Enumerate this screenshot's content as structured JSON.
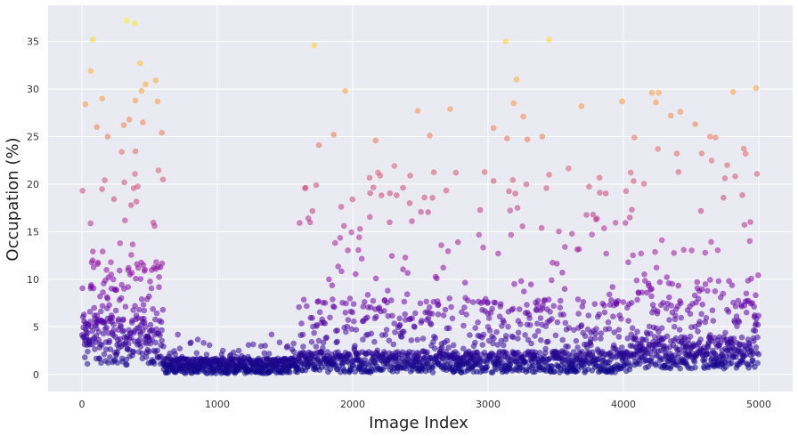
{
  "chart_data": {
    "type": "scatter",
    "title": "",
    "xlabel": "Image Index",
    "ylabel": "Occupation (%)",
    "xlim": [
      -250,
      5250
    ],
    "ylim": [
      -1.8,
      38.8
    ],
    "xticks": [
      0,
      1000,
      2000,
      3000,
      4000,
      5000
    ],
    "yticks": [
      0,
      5,
      10,
      15,
      20,
      25,
      30,
      35
    ],
    "grid": true,
    "colormap": "plasma",
    "color_range": [
      0,
      38
    ],
    "marker_alpha": 0.55,
    "background": "#eaeaf2",
    "highlight_points": [
      {
        "x": 330,
        "y": 37.2
      },
      {
        "x": 390,
        "y": 36.9
      },
      {
        "x": 80,
        "y": 35.2
      },
      {
        "x": 430,
        "y": 32.7
      },
      {
        "x": 65,
        "y": 31.9
      },
      {
        "x": 545,
        "y": 30.9
      },
      {
        "x": 470,
        "y": 30.5
      },
      {
        "x": 440,
        "y": 29.8
      },
      {
        "x": 150,
        "y": 29.0
      },
      {
        "x": 25,
        "y": 28.4
      },
      {
        "x": 395,
        "y": 28.8
      },
      {
        "x": 560,
        "y": 28.7
      },
      {
        "x": 110,
        "y": 26.0
      },
      {
        "x": 310,
        "y": 26.2
      },
      {
        "x": 350,
        "y": 26.8
      },
      {
        "x": 450,
        "y": 26.5
      },
      {
        "x": 590,
        "y": 25.4
      },
      {
        "x": 190,
        "y": 25.0
      },
      {
        "x": 1715,
        "y": 34.6
      },
      {
        "x": 1945,
        "y": 29.8
      },
      {
        "x": 1860,
        "y": 25.2
      },
      {
        "x": 1750,
        "y": 24.1
      },
      {
        "x": 2170,
        "y": 24.6
      },
      {
        "x": 2480,
        "y": 27.7
      },
      {
        "x": 2720,
        "y": 27.9
      },
      {
        "x": 2570,
        "y": 25.1
      },
      {
        "x": 3130,
        "y": 35.0
      },
      {
        "x": 3450,
        "y": 35.2
      },
      {
        "x": 3210,
        "y": 31.0
      },
      {
        "x": 3190,
        "y": 28.5
      },
      {
        "x": 3260,
        "y": 27.1
      },
      {
        "x": 3040,
        "y": 25.9
      },
      {
        "x": 3140,
        "y": 24.8
      },
      {
        "x": 3290,
        "y": 24.7
      },
      {
        "x": 3400,
        "y": 25.0
      },
      {
        "x": 3690,
        "y": 28.2
      },
      {
        "x": 3990,
        "y": 28.7
      },
      {
        "x": 4080,
        "y": 24.9
      },
      {
        "x": 4210,
        "y": 29.6
      },
      {
        "x": 4260,
        "y": 29.6
      },
      {
        "x": 4240,
        "y": 28.6
      },
      {
        "x": 4350,
        "y": 27.2
      },
      {
        "x": 4420,
        "y": 27.6
      },
      {
        "x": 4530,
        "y": 26.3
      },
      {
        "x": 4640,
        "y": 25.0
      },
      {
        "x": 4680,
        "y": 24.9
      },
      {
        "x": 4810,
        "y": 29.7
      },
      {
        "x": 4980,
        "y": 30.1
      }
    ],
    "regions": [
      {
        "x_range": [
          0,
          600
        ],
        "description": "dense band, wide spread 1-24"
      },
      {
        "x_range": [
          600,
          1600
        ],
        "description": "dense band near 0-2"
      },
      {
        "x_range": [
          1600,
          4050
        ],
        "description": "dense band near 0-3 with sparse upper scatter"
      },
      {
        "x_range": [
          4050,
          5000
        ],
        "description": "dense band near 1-4 with sparse upper scatter"
      }
    ]
  }
}
